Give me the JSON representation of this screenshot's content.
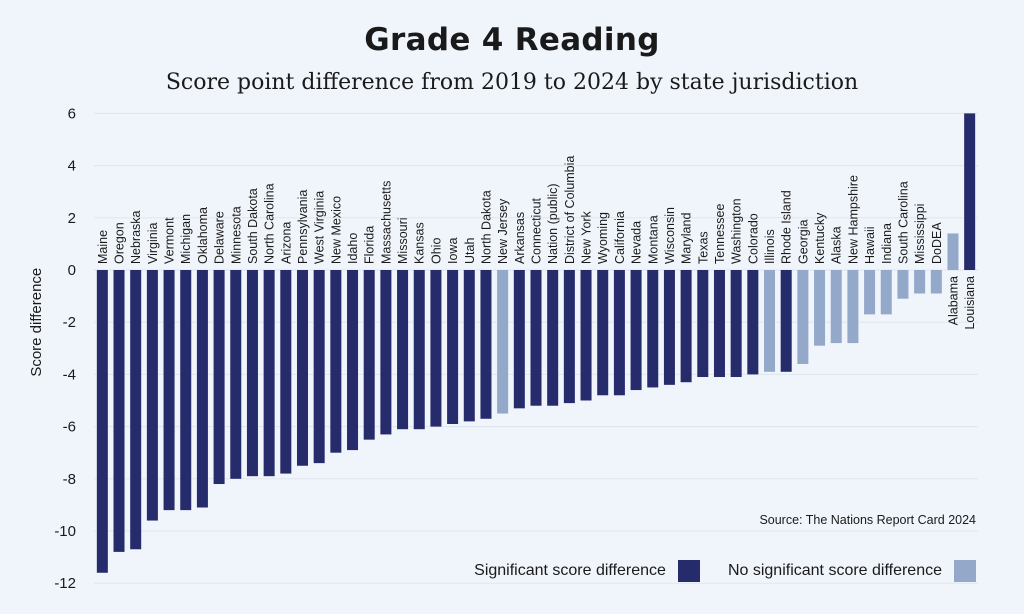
{
  "chart_data": {
    "type": "bar",
    "title": "Grade 4 Reading",
    "subtitle": "Score point difference from 2019 to 2024 by state jurisdiction",
    "ylabel": "Score difference",
    "ylim": [
      -12,
      6
    ],
    "yticks": [
      -12,
      -10,
      -8,
      -6,
      -4,
      -2,
      0,
      2,
      4,
      6
    ],
    "grid": true,
    "source": "Source: The Nations Report Card 2024",
    "legend": {
      "placement": "bottom-right",
      "items": [
        {
          "key": "sig",
          "label": "Significant score difference",
          "color": "#262b6b"
        },
        {
          "key": "ns",
          "label": "No significant score difference",
          "color": "#94a8c9"
        }
      ]
    },
    "categories": [
      "Maine",
      "Oregon",
      "Nebraska",
      "Virginia",
      "Vermont",
      "Michigan",
      "Oklahoma",
      "Delaware",
      "Minnesota",
      "South Dakota",
      "North Carolina",
      "Arizona",
      "Pennsylvania",
      "West Virginia",
      "New Mexico",
      "Idaho",
      "Florida",
      "Massachusetts",
      "Missouri",
      "Kansas",
      "Ohio",
      "Iowa",
      "Utah",
      "North Dakota",
      "New Jersey",
      "Arkansas",
      "Connecticut",
      "Nation (public)",
      "District of Columbia",
      "New York",
      "Wyoming",
      "California",
      "Nevada",
      "Montana",
      "Wisconsin",
      "Maryland",
      "Texas",
      "Tennessee",
      "Washington",
      "Colorado",
      "Illinois",
      "Rhode Island",
      "Georgia",
      "Kentucky",
      "Alaska",
      "New Hampshire",
      "Hawaii",
      "Indiana",
      "South Carolina",
      "Mississippi",
      "DoDEA",
      "Alabama",
      "Louisiana"
    ],
    "values": [
      -11.6,
      -10.8,
      -10.7,
      -9.6,
      -9.2,
      -9.2,
      -9.1,
      -8.2,
      -8.0,
      -7.9,
      -7.9,
      -7.8,
      -7.5,
      -7.4,
      -7.0,
      -6.9,
      -6.5,
      -6.3,
      -6.1,
      -6.1,
      -6.0,
      -5.9,
      -5.8,
      -5.7,
      -5.5,
      -5.3,
      -5.2,
      -5.2,
      -5.1,
      -5.0,
      -4.8,
      -4.8,
      -4.6,
      -4.5,
      -4.4,
      -4.3,
      -4.1,
      -4.1,
      -4.1,
      -4.0,
      -3.9,
      -3.9,
      -3.6,
      -2.9,
      -2.8,
      -2.8,
      -1.7,
      -1.7,
      -1.1,
      -0.9,
      -0.9,
      1.4,
      6.0
    ],
    "significance": [
      "sig",
      "sig",
      "sig",
      "sig",
      "sig",
      "sig",
      "sig",
      "sig",
      "sig",
      "sig",
      "sig",
      "sig",
      "sig",
      "sig",
      "sig",
      "sig",
      "sig",
      "sig",
      "sig",
      "sig",
      "sig",
      "sig",
      "sig",
      "sig",
      "ns",
      "sig",
      "sig",
      "sig",
      "sig",
      "sig",
      "sig",
      "sig",
      "sig",
      "sig",
      "sig",
      "sig",
      "sig",
      "sig",
      "sig",
      "sig",
      "ns",
      "sig",
      "ns",
      "ns",
      "ns",
      "ns",
      "ns",
      "ns",
      "ns",
      "ns",
      "ns",
      "ns",
      "sig"
    ]
  }
}
